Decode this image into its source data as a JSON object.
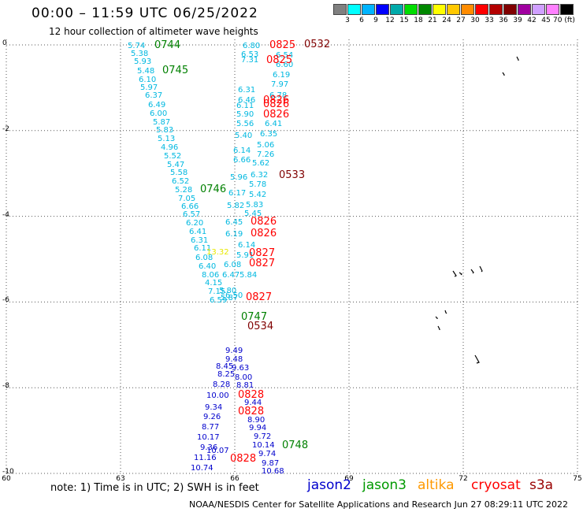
{
  "title": "00:00 – 11:59 UTC 06/25/2022",
  "subtitle": "12 hour collection of altimeter wave heights",
  "colorbar": {
    "colors": [
      "#808080",
      "#00ffff",
      "#00b4ff",
      "#0000ff",
      "#00aaaa",
      "#00dd00",
      "#008800",
      "#ffff00",
      "#ffc800",
      "#ff8c00",
      "#ff0000",
      "#b40000",
      "#800000",
      "#a000a0",
      "#d0a0ff",
      "#ff80ff",
      "#000000"
    ],
    "labels": [
      "3",
      "6",
      "9",
      "12",
      "15",
      "18",
      "21",
      "24",
      "27",
      "30",
      "33",
      "36",
      "39",
      "42",
      "45",
      "70 (ft)"
    ]
  },
  "axes": {
    "y_ticks": [
      "0",
      "-2",
      "-4",
      "-6",
      "-8",
      "-10"
    ],
    "x_ticks": [
      "60",
      "63",
      "66",
      "69",
      "72",
      "75"
    ]
  },
  "track_labels": [
    {
      "text": "0744",
      "color": "#008000"
    },
    {
      "text": "0745",
      "color": "#008000"
    },
    {
      "text": "0746",
      "color": "#008000"
    },
    {
      "text": "0747",
      "color": "#008000"
    },
    {
      "text": "0748",
      "color": "#008000"
    },
    {
      "text": "0825",
      "color": "#ff0000"
    },
    {
      "text": "0825",
      "color": "#ff0000"
    },
    {
      "text": "0826",
      "color": "#ff0000"
    },
    {
      "text": "0826",
      "color": "#ff0000"
    },
    {
      "text": "0826",
      "color": "#ff0000"
    },
    {
      "text": "0826",
      "color": "#ff0000"
    },
    {
      "text": "0826",
      "color": "#ff0000"
    },
    {
      "text": "0827",
      "color": "#ff0000"
    },
    {
      "text": "0827",
      "color": "#ff0000"
    },
    {
      "text": "0827",
      "color": "#ff0000"
    },
    {
      "text": "0828",
      "color": "#ff0000"
    },
    {
      "text": "0828",
      "color": "#ff0000"
    },
    {
      "text": "0828",
      "color": "#ff0000"
    },
    {
      "text": "0532",
      "color": "#800000"
    },
    {
      "text": "0533",
      "color": "#800000"
    },
    {
      "text": "0534",
      "color": "#800000"
    }
  ],
  "swh_values": [
    "5.74",
    "5.38",
    "5.93",
    "5.48",
    "6.10",
    "5.97",
    "6.37",
    "6.49",
    "6.00",
    "5.87",
    "5.83",
    "5.13",
    "4.96",
    "5.52",
    "5.47",
    "5.58",
    "6.52",
    "5.28",
    "7.05",
    "6.66",
    "6.57",
    "6.20",
    "6.41",
    "6.31",
    "6.11",
    "6.08",
    "6.40",
    "8.06",
    "4.15",
    "7.15",
    "6.59",
    "6.80",
    "6.53",
    "7.31",
    "6.31",
    "6.46",
    "6.11",
    "5.90",
    "5.56",
    "5.40",
    "6.14",
    "6.66",
    "5.96",
    "6.17",
    "5.82",
    "6.45",
    "6.19",
    "6.08",
    "6.47",
    "5.87",
    "5.80",
    "6.50",
    "6.54",
    "6.60",
    "6.19",
    "7.97",
    "6.78",
    "6.41",
    "6.35",
    "5.06",
    "7.26",
    "5.62",
    "6.32",
    "5.78",
    "5.42",
    "5.83",
    "5.45",
    "6.14",
    "5.91",
    "5.84",
    "13.32",
    "9.49",
    "9.48",
    "9.63",
    "8.00",
    "8.81",
    "9.44",
    "8.90",
    "9.94",
    "9.72",
    "10.14",
    "9.74",
    "9.87",
    "10.68",
    "8.45",
    "8.25",
    "8.28",
    "10.00",
    "9.34",
    "9.26",
    "8.77",
    "10.17",
    "9.36",
    "10.07",
    "11.16",
    "10.74"
  ],
  "note": "note:  1) Time is in UTC;  2) SWH is in feet",
  "legend": [
    {
      "text": "jason2",
      "color": "#0000cc"
    },
    {
      "text": "jason3",
      "color": "#009900"
    },
    {
      "text": "altika",
      "color": "#ff9900"
    },
    {
      "text": "cryosat",
      "color": "#ff0000"
    },
    {
      "text": "s3a",
      "color": "#990000"
    }
  ],
  "footer": "NOAA/NESDIS Center for Satellite Applications and Research   Jun 27 08:29:11 UTC 2022"
}
